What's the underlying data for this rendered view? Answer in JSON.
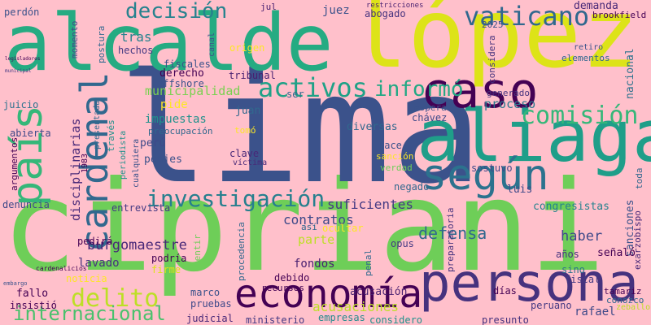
{
  "background": "#ffc0cb",
  "words": [
    {
      "text": "cipriani",
      "color": "#6ece58"
    },
    {
      "text": "lima",
      "color": "#3b528b"
    },
    {
      "text": "alcalde",
      "color": "#25ab82"
    },
    {
      "text": "lópez",
      "color": "#dde318"
    },
    {
      "text": "aliaga",
      "color": "#1f9e89"
    },
    {
      "text": "persona",
      "color": "#46327e"
    },
    {
      "text": "caso",
      "color": "#440154"
    },
    {
      "text": "economía",
      "color": "#440154"
    },
    {
      "text": "país",
      "color": "#35b779"
    },
    {
      "text": "según",
      "color": "#2c728e"
    },
    {
      "text": "cardenal",
      "color": "#31688e"
    },
    {
      "text": "vaticano",
      "color": "#31688e"
    },
    {
      "text": "investigación",
      "color": "#277f8e"
    },
    {
      "text": "activos",
      "color": "#1fa187"
    },
    {
      "text": "comisión",
      "color": "#35b779"
    },
    {
      "text": "delito",
      "color": "#bddf26"
    },
    {
      "text": "informó",
      "color": "#22a884"
    },
    {
      "text": "decisión",
      "color": "#26828e"
    },
    {
      "text": "internacional",
      "color": "#4ac16d"
    },
    {
      "text": "contratos",
      "color": "#3e4989"
    },
    {
      "text": "burgomaestre",
      "color": "#482878"
    },
    {
      "text": "defensa",
      "color": "#31688e"
    },
    {
      "text": "municipalidad",
      "color": "#7ad151"
    },
    {
      "text": "tras",
      "color": "#26828e"
    },
    {
      "text": "proceso",
      "color": "#2a788e"
    },
    {
      "text": "sanciones",
      "color": "#3b528b"
    },
    {
      "text": "disciplinarias",
      "color": "#482878"
    },
    {
      "text": "haber",
      "color": "#3e4989"
    },
    {
      "text": "nacional",
      "color": "#2c728e"
    },
    {
      "text": "impuestas",
      "color": "#21918c"
    },
    {
      "text": "suficientes",
      "color": "#443983"
    },
    {
      "text": "congresistas",
      "color": "#26828e"
    },
    {
      "text": "fondos",
      "color": "#481f70"
    },
    {
      "text": "lavado",
      "color": "#46327e"
    },
    {
      "text": "parte",
      "color": "#bddf26"
    },
    {
      "text": "pide",
      "color": "#fde725"
    },
    {
      "text": "perú",
      "color": "#3e4989"
    },
    {
      "text": "juez",
      "color": "#3b528b"
    },
    {
      "text": "demanda",
      "color": "#482878"
    },
    {
      "text": "peajes",
      "color": "#3b528b"
    },
    {
      "text": "entrevista",
      "color": "#443983"
    },
    {
      "text": "diversas",
      "color": "#31688e"
    },
    {
      "text": "luis",
      "color": "#3e4989"
    },
    {
      "text": "juan",
      "color": "#31688e"
    },
    {
      "text": "derecho",
      "color": "#440154"
    },
    {
      "text": "tribunal",
      "color": "#481f70"
    },
    {
      "text": "fiscales",
      "color": "#3b528b"
    },
    {
      "text": "offshore",
      "color": "#3b528b"
    },
    {
      "text": "acusación",
      "color": "#481f70"
    },
    {
      "text": "acusaciones",
      "color": "#bddf26"
    },
    {
      "text": "ministerio",
      "color": "#443983"
    },
    {
      "text": "empresas",
      "color": "#238a8d"
    },
    {
      "text": "considero",
      "color": "#21918c"
    },
    {
      "text": "rafael",
      "color": "#3e4989"
    },
    {
      "text": "peruano",
      "color": "#443983"
    },
    {
      "text": "fiscal",
      "color": "#443983"
    },
    {
      "text": "presunto",
      "color": "#46327e"
    },
    {
      "text": "días",
      "color": "#440154"
    },
    {
      "text": "sino",
      "color": "#2c728e"
    },
    {
      "text": "años",
      "color": "#46327e"
    },
    {
      "text": "señaló",
      "color": "#440154"
    },
    {
      "text": "pedirá",
      "color": "#440154"
    },
    {
      "text": "podría",
      "color": "#440154"
    },
    {
      "text": "marco",
      "color": "#3b528b"
    },
    {
      "text": "pruebas",
      "color": "#3e4989"
    },
    {
      "text": "judicial",
      "color": "#482878"
    },
    {
      "text": "fallo",
      "color": "#440154"
    },
    {
      "text": "insistió",
      "color": "#440154"
    },
    {
      "text": "noticia",
      "color": "#fde725"
    },
    {
      "text": "denuncia",
      "color": "#3e4989"
    },
    {
      "text": "argumentos",
      "color": "#440154"
    },
    {
      "text": "abierta",
      "color": "#3e4989"
    },
    {
      "text": "juicio",
      "color": "#2c728e"
    },
    {
      "text": "perdón",
      "color": "#3b528b"
    },
    {
      "text": "momento",
      "color": "#3e4989"
    },
    {
      "text": "postura",
      "color": "#31688e"
    },
    {
      "text": "hechos",
      "color": "#443983"
    },
    {
      "text": "abogado",
      "color": "#46327e"
    },
    {
      "text": "restricciones",
      "color": "#481f70"
    },
    {
      "text": "jul",
      "color": "#481f70"
    },
    {
      "text": "considera",
      "color": "#46327e"
    },
    {
      "text": "elementos",
      "color": "#31688e"
    },
    {
      "text": "retiro",
      "color": "#3b528b"
    },
    {
      "text": "brookfield",
      "color": "#440154"
    },
    {
      "text": "2025",
      "color": "#3b528b"
    },
    {
      "text": "origen",
      "color": "#fde725"
    },
    {
      "text": "ser",
      "color": "#31688e"
    },
    {
      "text": "canal",
      "color": "#3b528b"
    },
    {
      "text": "través",
      "color": "#21918c"
    },
    {
      "text": "periodista",
      "color": "#21918c"
    },
    {
      "text": "presentada",
      "color": "#31688e"
    },
    {
      "text": "cualquiera",
      "color": "#3b528b"
    },
    {
      "text": "1983",
      "color": "#440154"
    },
    {
      "text": "clave",
      "color": "#482878"
    },
    {
      "text": "víctima",
      "color": "#482878"
    },
    {
      "text": "tomó",
      "color": "#fde725"
    },
    {
      "text": "preocupación",
      "color": "#31688e"
    },
    {
      "text": "chávez",
      "color": "#3e4989"
    },
    {
      "text": "espera",
      "color": "#3b528b"
    },
    {
      "text": "hace",
      "color": "#3b528b"
    },
    {
      "text": "sanción",
      "color": "#fde725"
    },
    {
      "text": "verdad",
      "color": "#6ece58"
    },
    {
      "text": "sostuvo",
      "color": "#3e4989"
    },
    {
      "text": "negado",
      "color": "#31688e"
    },
    {
      "text": "opus",
      "color": "#443983"
    },
    {
      "text": "penal",
      "color": "#31688e"
    },
    {
      "text": "así",
      "color": "#31688e"
    },
    {
      "text": "debido",
      "color": "#440154"
    },
    {
      "text": "recursos",
      "color": "#440154"
    },
    {
      "text": "mentir",
      "color": "#6ece58"
    },
    {
      "text": "firme",
      "color": "#dde318"
    },
    {
      "text": "procedencia",
      "color": "#31688e"
    },
    {
      "text": "ocultar",
      "color": "#fde725"
    },
    {
      "text": "generado",
      "color": "#46327e"
    },
    {
      "text": "preparatoria",
      "color": "#46327e"
    },
    {
      "text": "exarzobispo",
      "color": "#482878"
    },
    {
      "text": "toda",
      "color": "#31688e"
    },
    {
      "text": "tamariz",
      "color": "#440154"
    },
    {
      "text": "conozco",
      "color": "#31688e"
    },
    {
      "text": "zeballos",
      "color": "#bddf26"
    },
    {
      "text": "cardenalicios",
      "color": "#440154"
    },
    {
      "text": "embargo",
      "color": "#3b528b"
    },
    {
      "text": "legisladores",
      "color": "#440154"
    },
    {
      "text": "municipal",
      "color": "#443983"
    }
  ]
}
